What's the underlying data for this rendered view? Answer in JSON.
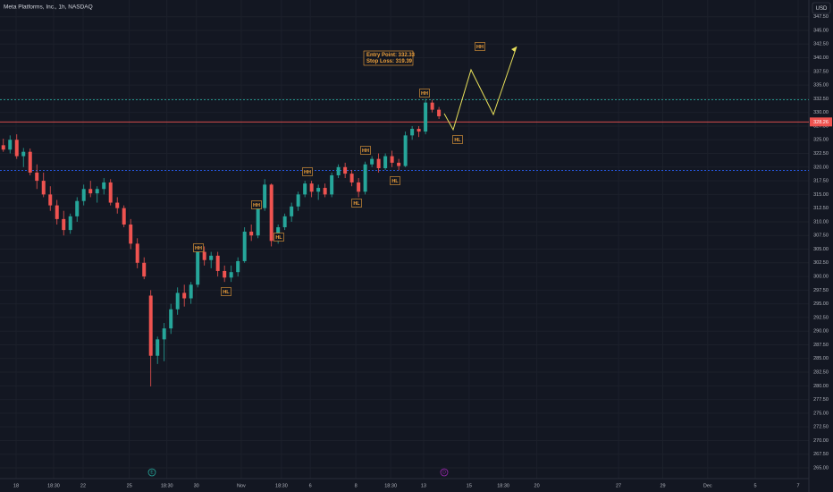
{
  "chart_data": {
    "type": "candlestick",
    "title": "Meta Platforms, Inc., 1h, NASDAQ",
    "currency": "USD",
    "color_up": "#26a69a",
    "color_down": "#ef5350",
    "grid": true,
    "open": [
      324.0,
      323.2,
      325.0,
      322.0,
      322.8,
      319.0,
      317.5,
      315.0,
      313.0,
      310.5,
      308.5,
      311.0,
      313.8,
      316.0,
      315.2,
      316.0,
      317.2,
      313.5,
      312.5,
      309.5,
      306.0,
      302.5,
      296.5,
      285.5,
      288.5,
      290.5,
      294.0,
      297.0,
      296.0,
      298.5,
      304.5,
      303.0,
      303.8,
      301.0,
      299.8,
      300.8,
      302.8,
      308.2,
      307.5,
      312.5,
      316.8,
      306.5,
      309.0,
      311.0,
      312.8,
      315.0,
      317.0,
      315.5,
      316.2,
      315.0,
      318.5,
      320.0,
      318.8,
      317.2,
      315.5,
      320.5,
      321.5,
      319.8,
      322.0,
      320.8,
      320.2,
      325.8,
      327.0,
      326.5,
      331.8,
      330.5
    ],
    "high": [
      325.2,
      325.8,
      326.0,
      323.5,
      323.4,
      320.5,
      319.0,
      316.5,
      314.0,
      312.0,
      311.5,
      314.5,
      316.8,
      317.5,
      316.5,
      318.0,
      317.8,
      314.5,
      313.0,
      310.5,
      307.0,
      303.5,
      297.5,
      289.0,
      291.5,
      295.0,
      298.0,
      298.5,
      299.0,
      305.5,
      305.5,
      304.5,
      304.5,
      302.0,
      302.0,
      303.5,
      309.0,
      309.5,
      313.5,
      317.8,
      317.0,
      309.5,
      311.5,
      313.5,
      315.5,
      317.5,
      317.5,
      316.8,
      317.0,
      319.0,
      320.5,
      320.8,
      319.5,
      318.0,
      321.0,
      322.0,
      322.5,
      322.5,
      323.0,
      321.5,
      326.5,
      327.5,
      327.5,
      332.5,
      332.3,
      331.0
    ],
    "low": [
      322.8,
      322.5,
      321.5,
      320.0,
      318.5,
      316.0,
      314.5,
      312.0,
      309.5,
      307.5,
      307.8,
      310.0,
      313.0,
      314.5,
      313.5,
      315.0,
      313.0,
      311.5,
      309.0,
      305.0,
      301.5,
      299.5,
      279.9,
      284.0,
      284.5,
      289.5,
      293.0,
      294.5,
      295.0,
      298.0,
      302.0,
      301.5,
      300.0,
      299.0,
      299.0,
      300.0,
      302.5,
      306.5,
      307.0,
      312.0,
      305.5,
      306.0,
      308.5,
      310.0,
      312.0,
      314.5,
      314.5,
      314.0,
      314.5,
      314.5,
      318.0,
      318.0,
      316.5,
      314.5,
      315.0,
      320.0,
      319.0,
      319.5,
      320.0,
      319.4,
      320.0,
      325.0,
      325.5,
      326.0,
      330.0,
      328.8
    ],
    "close": [
      323.2,
      325.0,
      322.0,
      322.8,
      319.0,
      317.5,
      315.0,
      313.0,
      310.5,
      308.5,
      311.0,
      313.8,
      316.0,
      315.2,
      316.0,
      317.2,
      313.5,
      312.5,
      309.5,
      306.0,
      302.5,
      300.0,
      285.5,
      288.5,
      290.5,
      294.0,
      297.0,
      296.0,
      298.5,
      304.5,
      303.0,
      303.8,
      301.0,
      299.8,
      300.8,
      302.8,
      308.2,
      307.5,
      312.5,
      316.8,
      306.5,
      309.0,
      311.0,
      312.8,
      315.0,
      317.0,
      315.5,
      316.2,
      315.0,
      318.5,
      320.0,
      318.8,
      317.2,
      315.5,
      320.5,
      321.5,
      319.8,
      322.0,
      320.8,
      320.2,
      325.8,
      327.0,
      326.5,
      331.8,
      330.5,
      329.3
    ],
    "last_price": 328.26,
    "entry": 332.33,
    "stop_loss": 319.39,
    "annotation": [
      "Entry Point: 332.33",
      "Stop Loss: 319.39"
    ],
    "pattern_labels": [
      "HH",
      "HL",
      "HH",
      "HL",
      "HH",
      "HL",
      "HH",
      "HL",
      "HH",
      "HL",
      "HH"
    ],
    "events": [
      "E",
      "D"
    ],
    "xlim": [
      -0.5,
      120.2
    ],
    "ylim": [
      263.04,
      350.56
    ],
    "xticks": [
      {
        "value": 1.9,
        "label": "18"
      },
      {
        "value": 7.5,
        "label": "18:30"
      },
      {
        "value": 11.9,
        "label": "22"
      },
      {
        "value": 18.8,
        "label": "25"
      },
      {
        "value": 24.4,
        "label": "18:30"
      },
      {
        "value": 28.8,
        "label": "30"
      },
      {
        "value": 35.5,
        "label": "Nov"
      },
      {
        "value": 41.5,
        "label": "18:30"
      },
      {
        "value": 45.8,
        "label": "6"
      },
      {
        "value": 52.6,
        "label": "8"
      },
      {
        "value": 57.8,
        "label": "18:30"
      },
      {
        "value": 62.7,
        "label": "13"
      },
      {
        "value": 69.5,
        "label": "15"
      },
      {
        "value": 74.6,
        "label": "18:30"
      },
      {
        "value": 79.6,
        "label": "20"
      },
      {
        "value": 91.8,
        "label": "27"
      },
      {
        "value": 98.4,
        "label": "29"
      },
      {
        "value": 105.1,
        "label": "Dec"
      },
      {
        "value": 112.2,
        "label": "5"
      },
      {
        "value": 118.6,
        "label": "7"
      }
    ],
    "yticks": [
      {
        "value": 265,
        "label": "265.00"
      },
      {
        "value": 267.5,
        "label": "267.50"
      },
      {
        "value": 270,
        "label": "270.00"
      },
      {
        "value": 272.5,
        "label": "272.50"
      },
      {
        "value": 275,
        "label": "275.00"
      },
      {
        "value": 277.5,
        "label": "277.50"
      },
      {
        "value": 280,
        "label": "280.00"
      },
      {
        "value": 282.5,
        "label": "282.50"
      },
      {
        "value": 285,
        "label": "285.00"
      },
      {
        "value": 287.5,
        "label": "287.50"
      },
      {
        "value": 290,
        "label": "290.00"
      },
      {
        "value": 292.5,
        "label": "292.50"
      },
      {
        "value": 295,
        "label": "295.00"
      },
      {
        "value": 297.5,
        "label": "297.50"
      },
      {
        "value": 300,
        "label": "300.00"
      },
      {
        "value": 302.5,
        "label": "302.50"
      },
      {
        "value": 305,
        "label": "305.00"
      },
      {
        "value": 307.5,
        "label": "307.50"
      },
      {
        "value": 310,
        "label": "310.00"
      },
      {
        "value": 312.5,
        "label": "312.50"
      },
      {
        "value": 315,
        "label": "315.00"
      },
      {
        "value": 317.5,
        "label": "317.50"
      },
      {
        "value": 320,
        "label": "320.00"
      },
      {
        "value": 322.5,
        "label": "322.50"
      },
      {
        "value": 325,
        "label": "325.00"
      },
      {
        "value": 327.5,
        "label": "327.50"
      },
      {
        "value": 330,
        "label": "330.00"
      },
      {
        "value": 332.5,
        "label": "332.50"
      },
      {
        "value": 335,
        "label": "335.00"
      },
      {
        "value": 337.5,
        "label": "337.50"
      },
      {
        "value": 340,
        "label": "340.00"
      },
      {
        "value": 342.5,
        "label": "342.50"
      },
      {
        "value": 345,
        "label": "345.00"
      },
      {
        "value": 347.5,
        "label": "347.50"
      }
    ]
  }
}
